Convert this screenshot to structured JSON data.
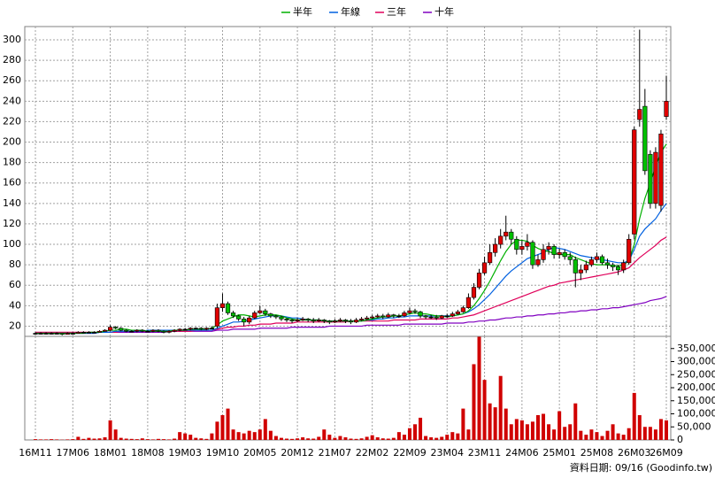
{
  "chart_data": {
    "type": "candlestick",
    "x": [
      "16M11",
      "16M12",
      "17M01",
      "17M02",
      "17M03",
      "17M04",
      "17M05",
      "17M06",
      "17M07",
      "17M08",
      "17M09",
      "17M10",
      "17M11",
      "17M12",
      "18M01",
      "18M02",
      "18M03",
      "18M04",
      "18M05",
      "18M06",
      "18M07",
      "18M08",
      "18M09",
      "18M10",
      "18M11",
      "18M12",
      "19M01",
      "19M02",
      "19M03",
      "19M04",
      "19M05",
      "19M06",
      "19M07",
      "19M08",
      "19M09",
      "19M10",
      "19M11",
      "19M12",
      "20M01",
      "20M02",
      "20M03",
      "20M04",
      "20M05",
      "20M06",
      "20M07",
      "20M08",
      "20M09",
      "20M10",
      "20M11",
      "20M12",
      "21M01",
      "21M02",
      "21M03",
      "21M04",
      "21M05",
      "21M06",
      "21M07",
      "21M08",
      "21M09",
      "21M10",
      "21M11",
      "21M12",
      "22M01",
      "22M02",
      "22M03",
      "22M04",
      "22M05",
      "22M06",
      "22M07",
      "22M08",
      "22M09",
      "22M10",
      "22M11",
      "22M12",
      "23M01",
      "23M02",
      "23M03",
      "23M04",
      "23M05",
      "23M06",
      "23M07",
      "23M08",
      "23M09",
      "23M10",
      "23M11",
      "23M12",
      "24M01",
      "24M02",
      "24M03",
      "24M04",
      "24M05",
      "24M06",
      "24M07",
      "24M08",
      "24M09",
      "24M10",
      "24M11",
      "24M12",
      "25M01",
      "25M02",
      "25M03",
      "25M04",
      "25M05",
      "25M06",
      "25M07",
      "25M08",
      "25M09",
      "25M10",
      "25M11",
      "25M12",
      "26M01",
      "26M02",
      "26M03",
      "26M04",
      "26M05",
      "26M06",
      "26M07",
      "26M08",
      "26M09"
    ],
    "open": [
      13,
      13,
      13,
      13,
      13,
      13,
      12,
      13,
      13,
      14,
      14,
      14,
      14,
      15,
      16,
      19,
      18,
      16,
      15,
      15,
      16,
      15,
      15,
      16,
      15,
      14,
      15,
      16,
      17,
      17,
      18,
      18,
      17,
      18,
      20,
      38,
      42,
      33,
      30,
      27,
      24,
      28,
      33,
      35,
      32,
      30,
      29,
      27,
      26,
      25,
      26,
      27,
      26,
      25,
      26,
      25,
      24,
      25,
      26,
      25,
      24,
      26,
      27,
      28,
      29,
      30,
      29,
      31,
      30,
      30,
      33,
      35,
      34,
      30,
      29,
      29,
      28,
      30,
      30,
      32,
      34,
      38,
      48,
      58,
      72,
      82,
      92,
      100,
      108,
      112,
      105,
      95,
      98,
      102,
      80,
      85,
      95,
      98,
      90,
      92,
      88,
      85,
      72,
      75,
      80,
      85,
      88,
      82,
      80,
      78,
      75,
      82,
      110,
      222,
      235,
      188,
      140,
      138,
      225
    ],
    "high": [
      14,
      14,
      14,
      14,
      14,
      13,
      14,
      14,
      15,
      15,
      15,
      15,
      16,
      17,
      21,
      20,
      19,
      17,
      16,
      17,
      17,
      16,
      17,
      17,
      16,
      16,
      17,
      18,
      18,
      19,
      19,
      19,
      19,
      20,
      42,
      52,
      44,
      35,
      31,
      29,
      30,
      35,
      40,
      37,
      33,
      31,
      30,
      28,
      27,
      28,
      29,
      28,
      28,
      28,
      27,
      26,
      27,
      28,
      27,
      27,
      28,
      29,
      30,
      31,
      32,
      32,
      33,
      32,
      32,
      35,
      38,
      37,
      35,
      31,
      31,
      31,
      31,
      32,
      34,
      36,
      40,
      52,
      62,
      76,
      88,
      100,
      106,
      115,
      128,
      115,
      108,
      104,
      110,
      104,
      90,
      100,
      102,
      100,
      96,
      95,
      92,
      88,
      80,
      84,
      88,
      92,
      90,
      86,
      82,
      80,
      85,
      110,
      215,
      310,
      252,
      192,
      195,
      212,
      265
    ],
    "low": [
      12,
      12,
      12,
      12,
      12,
      11,
      12,
      12,
      13,
      13,
      13,
      13,
      14,
      15,
      15,
      17,
      15,
      14,
      14,
      14,
      14,
      14,
      14,
      14,
      13,
      13,
      14,
      15,
      16,
      16,
      17,
      16,
      16,
      17,
      18,
      34,
      31,
      28,
      25,
      20,
      22,
      27,
      32,
      30,
      28,
      27,
      25,
      24,
      23,
      24,
      25,
      24,
      23,
      24,
      23,
      22,
      23,
      24,
      23,
      22,
      23,
      25,
      26,
      27,
      28,
      27,
      28,
      28,
      28,
      29,
      32,
      32,
      28,
      27,
      27,
      26,
      27,
      28,
      29,
      31,
      33,
      37,
      46,
      56,
      70,
      80,
      88,
      96,
      104,
      100,
      90,
      90,
      94,
      76,
      78,
      82,
      90,
      86,
      86,
      85,
      80,
      58,
      65,
      72,
      78,
      82,
      80,
      76,
      74,
      70,
      72,
      80,
      105,
      215,
      168,
      135,
      135,
      132,
      222
    ],
    "close": [
      13,
      13,
      13,
      13,
      13,
      12,
      13,
      13,
      14,
      14,
      14,
      14,
      15,
      16,
      19,
      18,
      16,
      15,
      15,
      16,
      15,
      15,
      16,
      15,
      14,
      15,
      16,
      17,
      17,
      18,
      18,
      17,
      18,
      18,
      38,
      42,
      33,
      30,
      27,
      24,
      28,
      33,
      35,
      32,
      30,
      29,
      27,
      26,
      25,
      26,
      27,
      26,
      25,
      26,
      25,
      24,
      25,
      26,
      25,
      24,
      26,
      27,
      28,
      29,
      30,
      29,
      31,
      30,
      30,
      33,
      35,
      34,
      30,
      29,
      29,
      28,
      30,
      30,
      32,
      34,
      38,
      48,
      58,
      72,
      82,
      92,
      100,
      108,
      112,
      105,
      95,
      98,
      102,
      80,
      85,
      95,
      98,
      90,
      92,
      88,
      85,
      72,
      75,
      80,
      85,
      88,
      82,
      80,
      78,
      75,
      82,
      105,
      212,
      232,
      172,
      140,
      190,
      208,
      240
    ],
    "up_color": "#e00000",
    "down_color": "#00c000",
    "series": [
      {
        "name": "半年",
        "color": "#00b000",
        "values": [
          13,
          13,
          13,
          13,
          13,
          13,
          13,
          13,
          13,
          13,
          14,
          14,
          14,
          15,
          16,
          16,
          17,
          17,
          16,
          16,
          16,
          15,
          15,
          15,
          15,
          15,
          16,
          16,
          16,
          17,
          17,
          17,
          17,
          18,
          21,
          25,
          27,
          29,
          31,
          31,
          30,
          29,
          30,
          31,
          31,
          31,
          30,
          28,
          27,
          26,
          26,
          26,
          26,
          26,
          25,
          25,
          25,
          25,
          25,
          25,
          25,
          25,
          26,
          27,
          28,
          29,
          29,
          30,
          30,
          31,
          32,
          33,
          32,
          32,
          31,
          30,
          30,
          29,
          30,
          31,
          32,
          35,
          40,
          47,
          55,
          64,
          74,
          84,
          93,
          100,
          104,
          104,
          103,
          99,
          96,
          94,
          93,
          91,
          90,
          90,
          90,
          87,
          85,
          83,
          81,
          80,
          80,
          80,
          79,
          79,
          80,
          84,
          100,
          125,
          145,
          160,
          176,
          190,
          198
        ]
      },
      {
        "name": "年線",
        "color": "#0060e0",
        "values": [
          13,
          13,
          13,
          13,
          13,
          13,
          13,
          13,
          13,
          13,
          13,
          13,
          14,
          14,
          14,
          15,
          15,
          15,
          15,
          15,
          15,
          16,
          16,
          16,
          16,
          16,
          16,
          16,
          16,
          16,
          16,
          16,
          16,
          16,
          18,
          20,
          22,
          24,
          24,
          25,
          26,
          27,
          28,
          29,
          30,
          30,
          30,
          29,
          28,
          28,
          27,
          26,
          26,
          26,
          25,
          25,
          25,
          25,
          25,
          25,
          25,
          25,
          26,
          26,
          27,
          27,
          28,
          28,
          29,
          29,
          30,
          30,
          30,
          30,
          30,
          30,
          30,
          30,
          30,
          31,
          32,
          34,
          37,
          41,
          46,
          51,
          57,
          63,
          69,
          74,
          78,
          82,
          86,
          88,
          90,
          92,
          95,
          97,
          96,
          95,
          93,
          91,
          89,
          88,
          87,
          86,
          85,
          84,
          83,
          82,
          82,
          84,
          95,
          108,
          115,
          120,
          125,
          133,
          140
        ]
      },
      {
        "name": "三年",
        "color": "#e0005a",
        "values": [
          14,
          14,
          14,
          14,
          14,
          14,
          14,
          14,
          14,
          14,
          14,
          14,
          14,
          14,
          14,
          14,
          15,
          15,
          15,
          15,
          15,
          15,
          15,
          15,
          15,
          15,
          15,
          15,
          15,
          15,
          16,
          16,
          16,
          16,
          17,
          18,
          19,
          19,
          20,
          20,
          21,
          21,
          22,
          22,
          22,
          23,
          23,
          23,
          23,
          24,
          24,
          24,
          24,
          24,
          24,
          24,
          24,
          24,
          24,
          25,
          25,
          25,
          25,
          25,
          25,
          25,
          25,
          26,
          26,
          26,
          26,
          26,
          27,
          27,
          27,
          27,
          27,
          27,
          28,
          28,
          29,
          30,
          31,
          33,
          35,
          37,
          39,
          41,
          43,
          45,
          47,
          49,
          51,
          53,
          55,
          57,
          59,
          60,
          62,
          63,
          64,
          65,
          66,
          67,
          68,
          69,
          70,
          71,
          72,
          73,
          75,
          77,
          82,
          87,
          91,
          95,
          99,
          104,
          107
        ]
      },
      {
        "name": "十年",
        "color": "#8000c0",
        "values": [
          13,
          13,
          13,
          13,
          13,
          13,
          13,
          13,
          13,
          13,
          13,
          13,
          14,
          14,
          14,
          14,
          14,
          14,
          14,
          14,
          14,
          14,
          14,
          14,
          14,
          15,
          15,
          15,
          15,
          15,
          15,
          15,
          15,
          15,
          16,
          16,
          16,
          17,
          17,
          17,
          17,
          17,
          18,
          18,
          18,
          18,
          18,
          18,
          19,
          19,
          19,
          19,
          19,
          19,
          19,
          20,
          20,
          20,
          20,
          20,
          20,
          20,
          21,
          21,
          21,
          21,
          21,
          21,
          21,
          22,
          22,
          22,
          22,
          22,
          22,
          22,
          22,
          23,
          23,
          23,
          23,
          24,
          24,
          25,
          25,
          26,
          26,
          27,
          28,
          28,
          29,
          29,
          30,
          30,
          31,
          31,
          32,
          32,
          33,
          33,
          34,
          34,
          35,
          35,
          36,
          36,
          37,
          37,
          38,
          38,
          39,
          40,
          41,
          42,
          43,
          45,
          46,
          47,
          49
        ]
      }
    ],
    "xticks": [
      "16M11",
      "17M06",
      "18M01",
      "18M08",
      "19M03",
      "19M10",
      "20M05",
      "20M12",
      "21M07",
      "22M02",
      "22M09",
      "23M04",
      "23M11",
      "24M06",
      "25M01",
      "25M08",
      "26M03",
      "26M09"
    ],
    "ylim": [
      10,
      313
    ],
    "yticks": [
      20,
      40,
      60,
      80,
      100,
      120,
      140,
      160,
      180,
      200,
      220,
      240,
      260,
      280,
      300
    ],
    "grid": true,
    "volume": {
      "color": "#d00000",
      "values": [
        3000,
        2000,
        2000,
        3000,
        2000,
        1000,
        2000,
        3000,
        12000,
        4000,
        8000,
        5000,
        6000,
        10000,
        75000,
        40000,
        8000,
        5000,
        4000,
        3000,
        6000,
        3000,
        2000,
        4000,
        3000,
        2000,
        5000,
        30000,
        25000,
        20000,
        8000,
        6000,
        4000,
        25000,
        70000,
        95000,
        120000,
        40000,
        30000,
        25000,
        35000,
        30000,
        40000,
        80000,
        35000,
        15000,
        8000,
        5000,
        4000,
        6000,
        10000,
        6000,
        5000,
        12000,
        40000,
        20000,
        8000,
        15000,
        10000,
        5000,
        4000,
        6000,
        12000,
        18000,
        10000,
        6000,
        5000,
        8000,
        30000,
        20000,
        45000,
        60000,
        85000,
        15000,
        10000,
        8000,
        12000,
        20000,
        30000,
        25000,
        120000,
        40000,
        290000,
        395000,
        230000,
        140000,
        125000,
        245000,
        120000,
        60000,
        80000,
        75000,
        60000,
        70000,
        95000,
        100000,
        60000,
        40000,
        110000,
        50000,
        60000,
        140000,
        35000,
        20000,
        40000,
        30000,
        15000,
        35000,
        60000,
        25000,
        20000,
        45000,
        180000,
        95000,
        50000,
        50000,
        40000,
        80000,
        75000
      ],
      "ylim": [
        0,
        400000
      ],
      "yticks": [
        0,
        {
          "value": 50000,
          "label": "50,000"
        },
        {
          "value": 100000,
          "label": "100,000"
        },
        {
          "value": 150000,
          "label": "150,000"
        },
        {
          "value": 200000,
          "label": "200,000"
        },
        {
          "value": 250000,
          "label": "250,000"
        },
        {
          "value": 300000,
          "label": "300,000"
        },
        {
          "value": 350000,
          "label": "350,000"
        }
      ]
    },
    "footer": "資料日期: 09/16  (Goodinfo.tw)"
  }
}
